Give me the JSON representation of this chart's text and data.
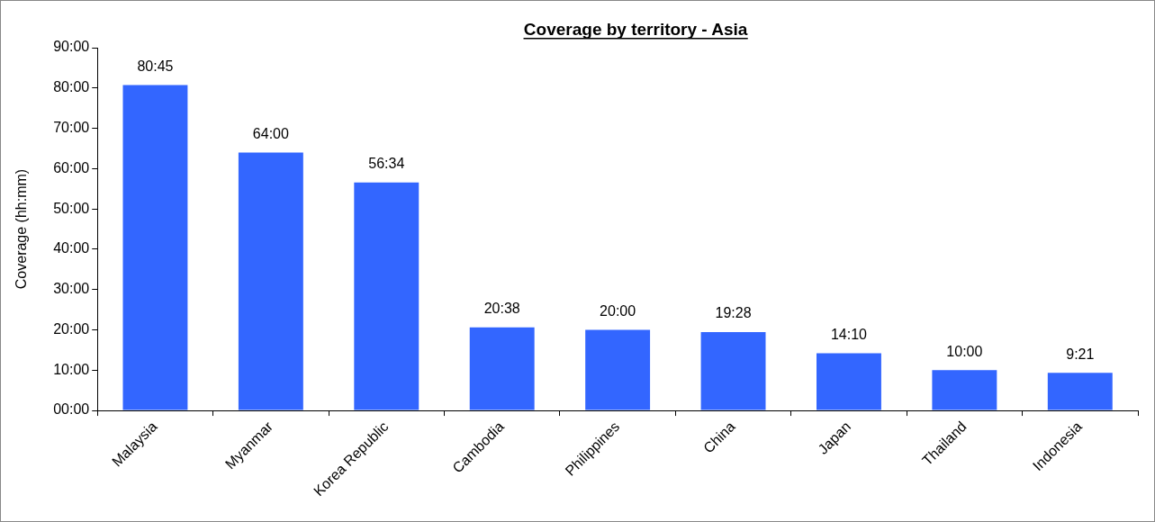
{
  "chart_data": {
    "type": "bar",
    "title": "Coverage by territory - Asia",
    "ylabel": "Coverage (hh:mm)",
    "categories": [
      "Malaysia",
      "Myanmar",
      "Korea Republic",
      "Cambodia",
      "Philippines",
      "China",
      "Japan",
      "Thailand",
      "Indonesia"
    ],
    "values": [
      80.75,
      64,
      56.5667,
      20.6333,
      20,
      19.4667,
      14.1667,
      10,
      9.35
    ],
    "value_labels": [
      "80:45",
      "64:00",
      "56:34",
      "20:38",
      "20:00",
      "19:28",
      "14:10",
      "10:00",
      "9:21"
    ],
    "color": "#3366ff",
    "ylim": [
      0,
      90
    ],
    "yticks": [
      {
        "value": 0,
        "label": "00:00"
      },
      {
        "value": 10,
        "label": "10:00"
      },
      {
        "value": 20,
        "label": "20:00"
      },
      {
        "value": 30,
        "label": "30:00"
      },
      {
        "value": 40,
        "label": "40:00"
      },
      {
        "value": 50,
        "label": "50:00"
      },
      {
        "value": 60,
        "label": "60:00"
      },
      {
        "value": 70,
        "label": "70:00"
      },
      {
        "value": 80,
        "label": "80:00"
      },
      {
        "value": 90,
        "label": "90:00"
      }
    ],
    "grid": false,
    "legend": false
  }
}
